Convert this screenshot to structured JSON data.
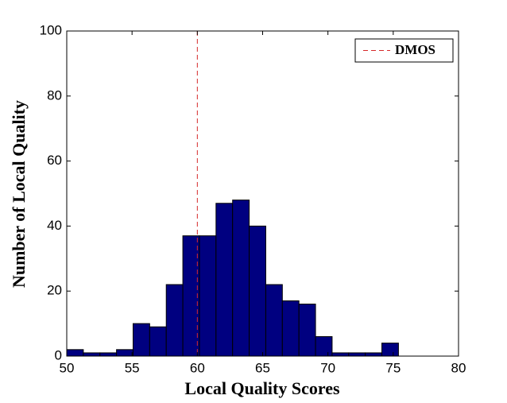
{
  "chart_data": {
    "type": "histogram",
    "xlabel": "Local Quality Scores",
    "ylabel": "Number of Local Quality",
    "bins": [
      50,
      51.27,
      52.54,
      53.81,
      55.08,
      56.35,
      57.62,
      58.89,
      60.16,
      61.43,
      62.7,
      63.97,
      65.24,
      66.51,
      67.78,
      69.05,
      70.32,
      71.59,
      72.86,
      74.13,
      75.4
    ],
    "counts": [
      2,
      1,
      1,
      2,
      10,
      9,
      22,
      37,
      37,
      47,
      48,
      40,
      22,
      17,
      16,
      6,
      1,
      1,
      1,
      4
    ],
    "color": "#000080",
    "dmos": {
      "name": "DMOS",
      "value": 60,
      "color": "#d62728"
    },
    "legend": "upper right",
    "xlim": [
      50,
      80
    ],
    "xticks": [
      50,
      55,
      60,
      65,
      70,
      75,
      80
    ],
    "ylim": [
      0,
      100
    ],
    "yticks": [
      0,
      20,
      40,
      60,
      80,
      100
    ]
  }
}
